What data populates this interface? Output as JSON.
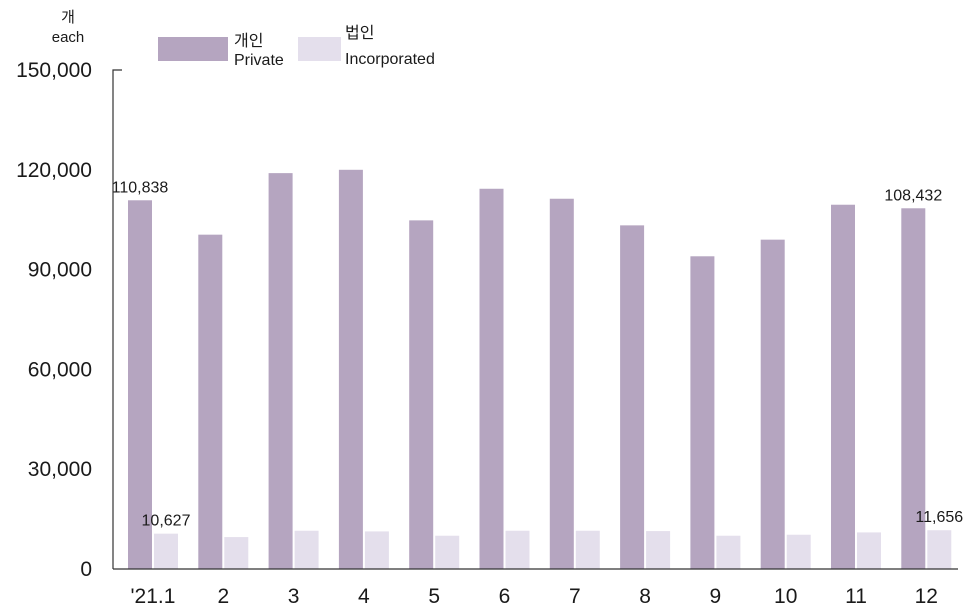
{
  "chart_data": {
    "type": "bar",
    "unit": {
      "ko": "개",
      "en": "each"
    },
    "categories": [
      "'21.1",
      "2",
      "3",
      "4",
      "5",
      "6",
      "7",
      "8",
      "9",
      "10",
      "11",
      "12"
    ],
    "series": [
      {
        "name_ko": "개인",
        "name_en": "Private",
        "color": "#b5a5c0",
        "values": [
          110838,
          100500,
          119000,
          120000,
          104800,
          114300,
          111300,
          103300,
          94000,
          99000,
          109500,
          108432
        ]
      },
      {
        "name_ko": "법인",
        "name_en": "Incorporated",
        "color": "#e4dfec",
        "values": [
          10627,
          9600,
          11500,
          11300,
          10000,
          11500,
          11500,
          11400,
          10000,
          10300,
          11000,
          11656
        ]
      }
    ],
    "ylim": [
      0,
      150000
    ],
    "yticks": [
      0,
      30000,
      60000,
      90000,
      120000,
      150000
    ],
    "ytick_labels": [
      "0",
      "30,000",
      "60,000",
      "90,000",
      "120,000",
      "150,000"
    ],
    "data_labels": [
      {
        "series": 0,
        "index": 0,
        "text": "110,838"
      },
      {
        "series": 0,
        "index": 11,
        "text": "108,432"
      },
      {
        "series": 1,
        "index": 0,
        "text": "10,627"
      },
      {
        "series": 1,
        "index": 11,
        "text": "11,656"
      }
    ],
    "legend_position": "top-left",
    "grid": false
  }
}
